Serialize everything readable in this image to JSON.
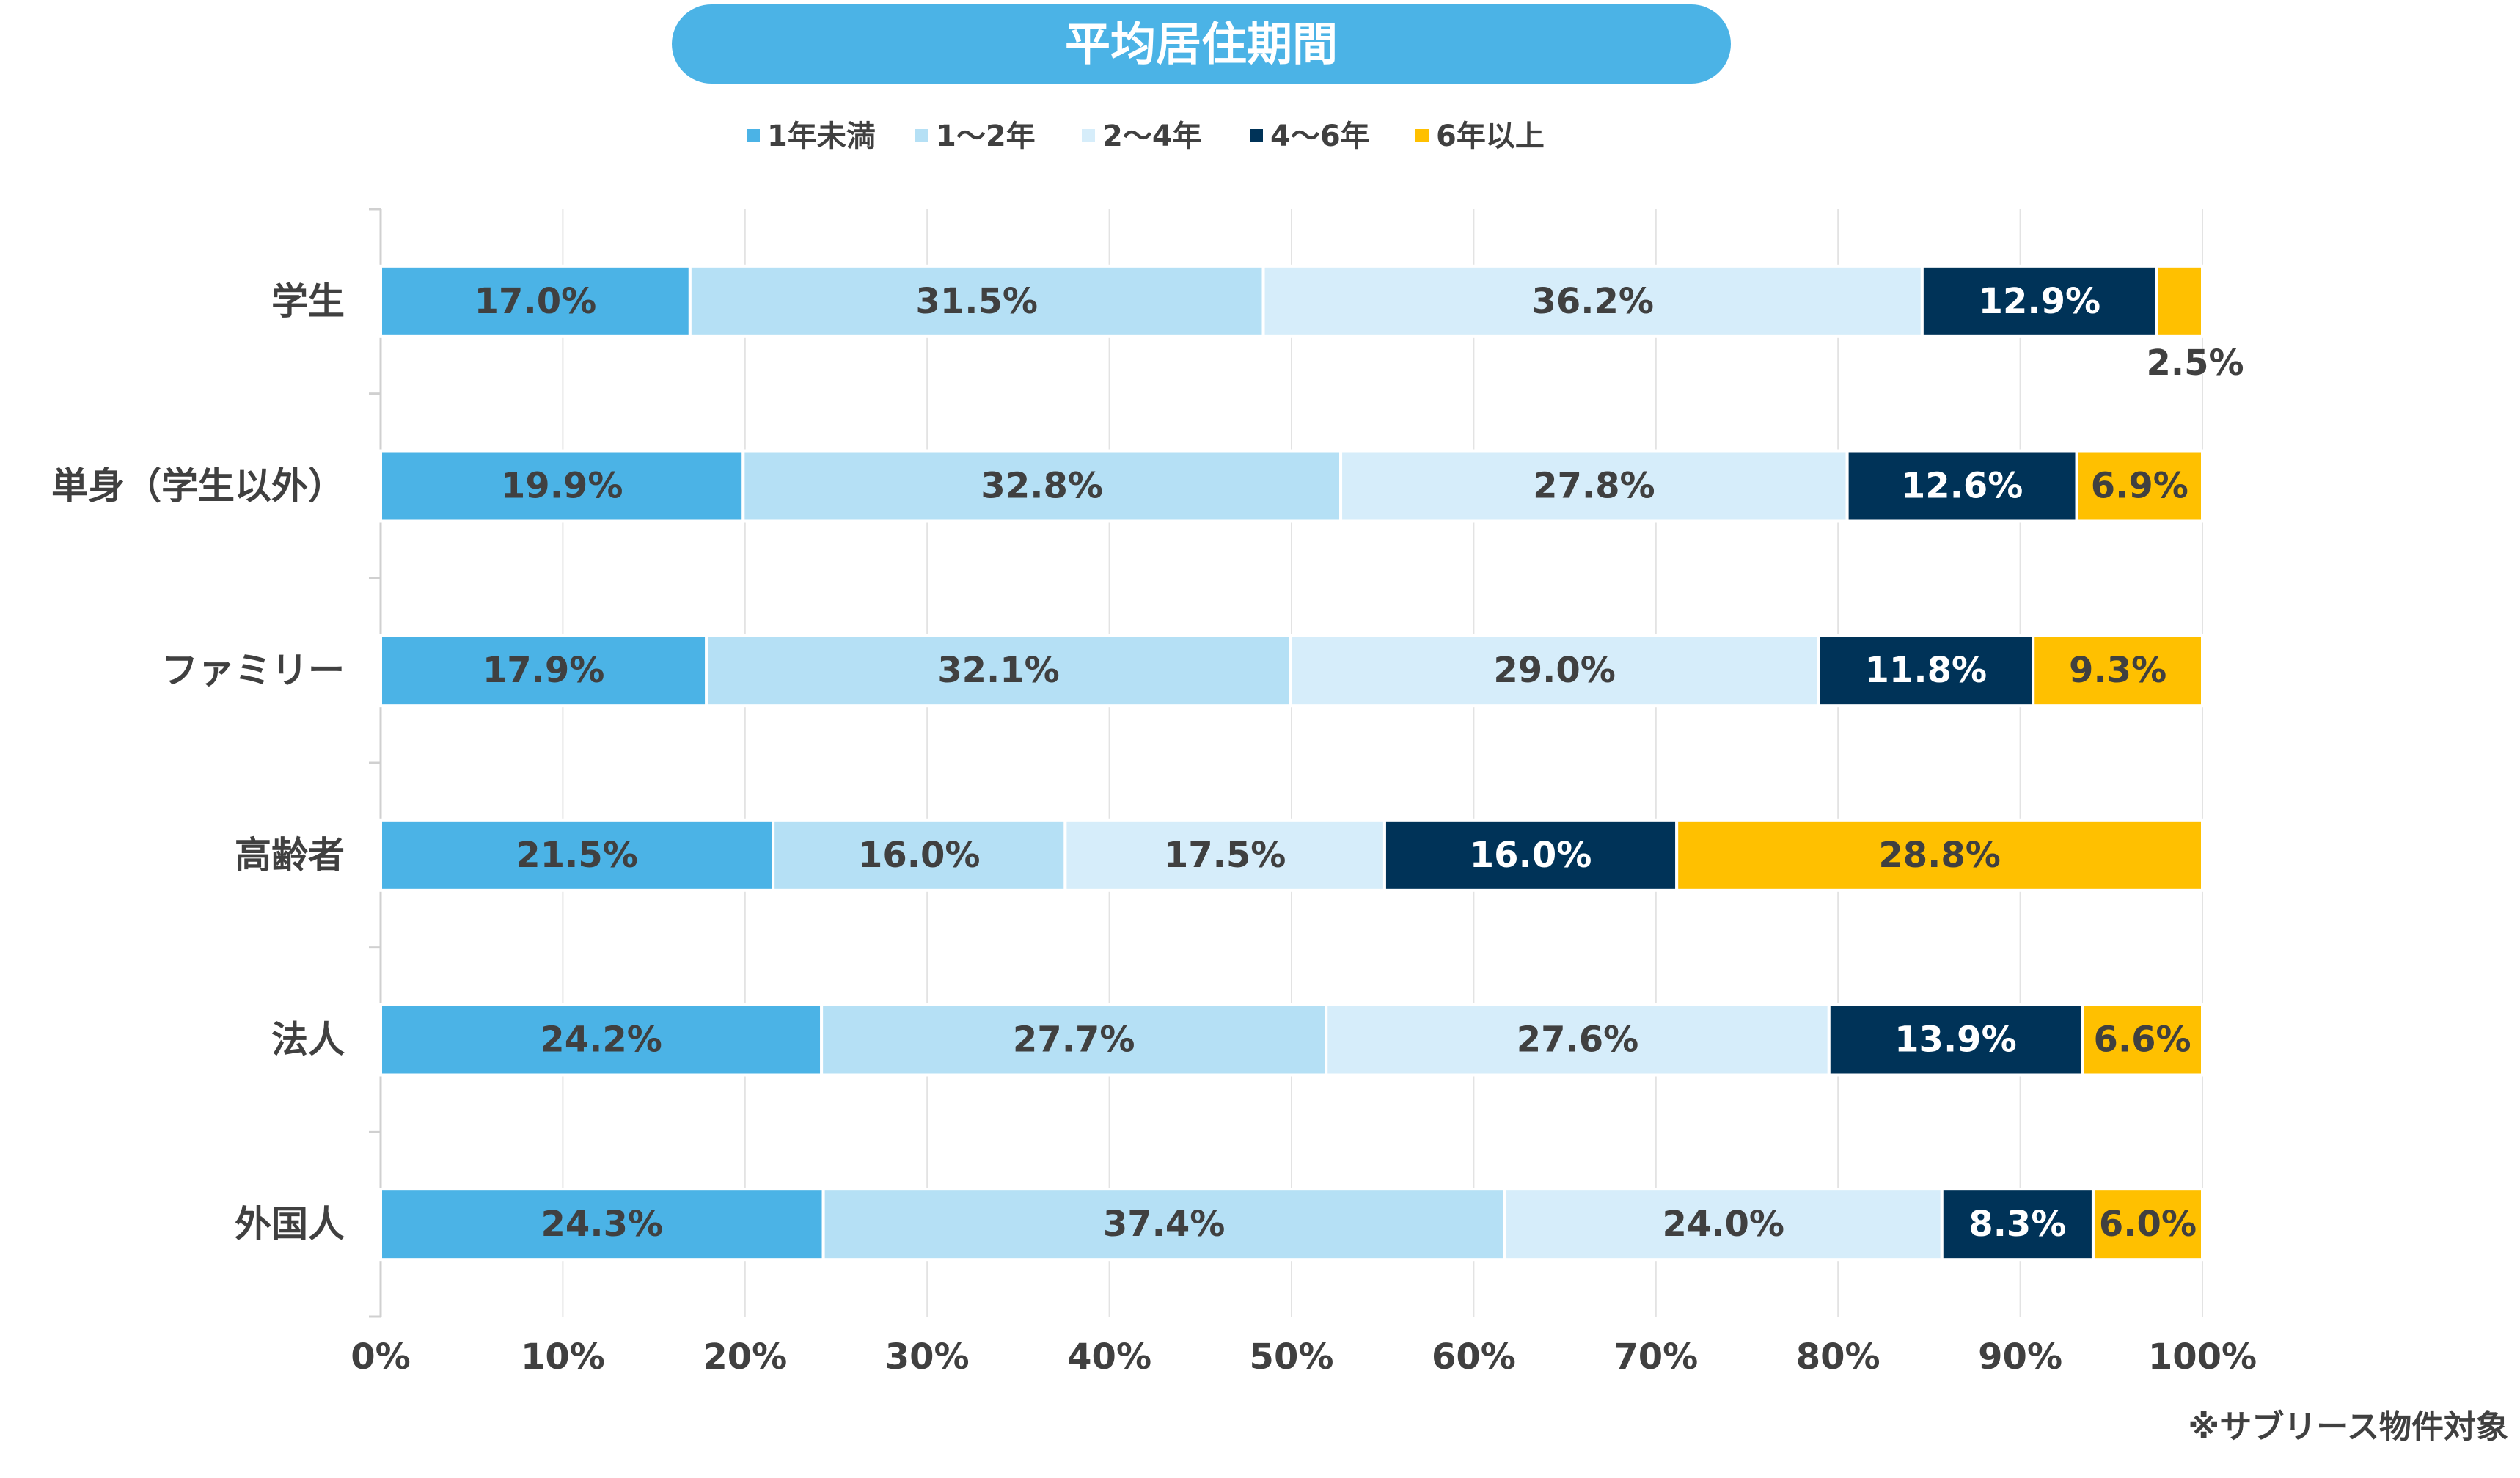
{
  "chart_data": {
    "type": "bar",
    "orientation": "horizontal",
    "stacked": "percent",
    "title": "平均居住期間",
    "categories": [
      "学生",
      "単身（学生以外）",
      "ファミリー",
      "高齢者",
      "法人",
      "外国人"
    ],
    "series": [
      {
        "name": "1年未満",
        "color": "#4BB3E6",
        "values": [
          17.0,
          19.9,
          17.9,
          21.5,
          24.2,
          24.3
        ]
      },
      {
        "name": "1～2年",
        "color": "#B5E0F5",
        "values": [
          31.5,
          32.8,
          32.1,
          16.0,
          27.7,
          37.4
        ]
      },
      {
        "name": "2～4年",
        "color": "#D6EDFA",
        "values": [
          36.2,
          27.8,
          29.0,
          17.5,
          27.6,
          24.0
        ]
      },
      {
        "name": "4～6年",
        "color": "#003358",
        "values": [
          12.9,
          12.6,
          11.8,
          16.0,
          13.9,
          8.3
        ]
      },
      {
        "name": "6年以上",
        "color": "#FFC000",
        "values": [
          2.5,
          6.9,
          9.3,
          28.8,
          6.6,
          6.0
        ]
      }
    ],
    "labels": [
      [
        "17.0%",
        "31.5%",
        "36.2%",
        "12.9%",
        "2.5%"
      ],
      [
        "19.9%",
        "32.8%",
        "27.8%",
        "12.6%",
        "6.9%"
      ],
      [
        "17.9%",
        "32.1%",
        "29.0%",
        "11.8%",
        "9.3%"
      ],
      [
        "21.5%",
        "16.0%",
        "17.5%",
        "16.0%",
        "28.8%"
      ],
      [
        "24.2%",
        "27.7%",
        "27.6%",
        "13.9%",
        "6.6%"
      ],
      [
        "24.3%",
        "37.4%",
        "24.0%",
        "8.3%",
        "6.0%"
      ]
    ],
    "xlim": [
      0,
      100
    ],
    "xticks": [
      "0%",
      "10%",
      "20%",
      "30%",
      "40%",
      "50%",
      "60%",
      "70%",
      "80%",
      "90%",
      "100%"
    ],
    "grid": true,
    "legend_position": "top",
    "title_color": "#4BB3E6",
    "footnote": "※サブリース物件対象"
  }
}
